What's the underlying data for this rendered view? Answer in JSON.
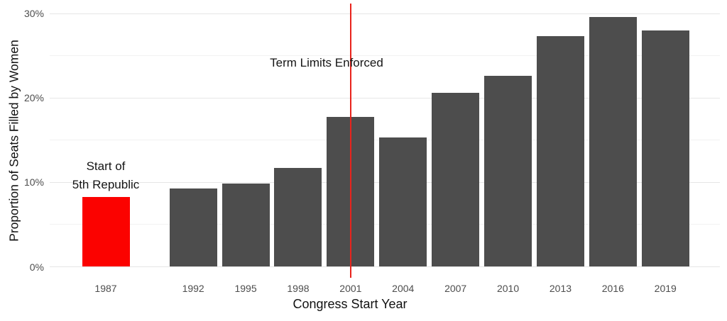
{
  "chart_data": {
    "type": "bar",
    "title": "",
    "xlabel": "Congress Start Year",
    "ylabel": "Proportion of Seats Filled by Women",
    "categories": [
      "1987",
      "1992",
      "1995",
      "1998",
      "2001",
      "2004",
      "2007",
      "2010",
      "2013",
      "2016",
      "2019"
    ],
    "values": [
      8.3,
      9.3,
      9.9,
      11.7,
      17.8,
      15.3,
      20.6,
      22.6,
      27.3,
      29.6,
      28.0
    ],
    "value_unit": "percent",
    "ylim": [
      0,
      30
    ],
    "yticks": [
      0,
      10,
      20,
      30
    ],
    "ytick_labels": [
      "0%",
      "10%",
      "20%",
      "30%"
    ],
    "minor_yticks": [
      5,
      15,
      25
    ],
    "grid": "horizontal",
    "legend": "none",
    "colors": {
      "bar_default": "#4d4d4d",
      "bar_highlight": "#fb0200",
      "vline_red": "#e8231c",
      "tick_label": "#4d4d4d",
      "axis_title": "#111111",
      "background": "#ffffff"
    },
    "highlight_category": "1987",
    "annotations": {
      "start_line1": "Start of",
      "start_line2": "5th Republic",
      "term_limits": "Term Limits Enforced",
      "vline_category": "2001"
    }
  }
}
